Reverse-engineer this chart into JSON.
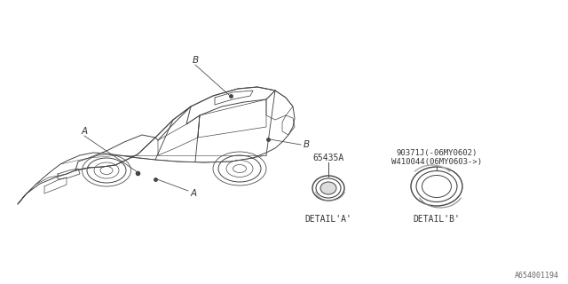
{
  "bg_color": "#ffffff",
  "line_color": "#444444",
  "text_color": "#333333",
  "label_A": "A",
  "label_B": "B",
  "part_number_A": "65435A",
  "part_number_B1": "90371J(-06MY0602)",
  "part_number_B2": "W410044(06MY0603->)",
  "detail_A_label": "DETAIL'A'",
  "detail_B_label": "DETAIL'B'",
  "footer": "A654001194",
  "car_scale": 1.0
}
